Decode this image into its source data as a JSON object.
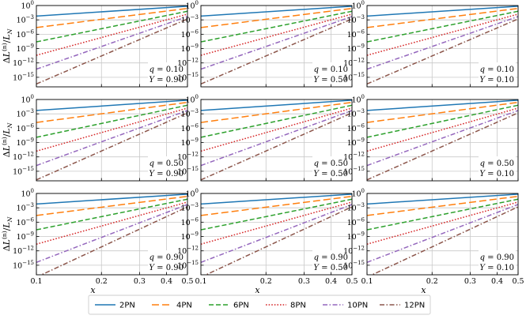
{
  "chart_data": {
    "type": "line",
    "layout": "3x3 grid of log-log line plots",
    "xlabel": "x",
    "ylabel": "ΔL(n)/LN",
    "xscale": "log",
    "yscale": "log",
    "xlim": [
      0.1,
      0.5
    ],
    "ylim": [
      1e-17,
      1
    ],
    "x_ticks": [
      {
        "value": 0.1,
        "label": "0.1"
      },
      {
        "value": 0.2,
        "label": "0.2"
      },
      {
        "value": 0.3,
        "label": "0.3"
      },
      {
        "value": 0.4,
        "label": "0.4"
      },
      {
        "value": 0.5,
        "label": "0.5"
      }
    ],
    "y_ticks": [
      {
        "value": 1,
        "label": "10^0",
        "exp": "0"
      },
      {
        "value": 0.001,
        "label": "10^-3",
        "exp": "−3"
      },
      {
        "value": 1e-06,
        "label": "10^-6",
        "exp": "−6"
      },
      {
        "value": 1e-09,
        "label": "10^-9",
        "exp": "−9"
      },
      {
        "value": 1e-12,
        "label": "10^-12",
        "exp": "−12"
      },
      {
        "value": 1e-15,
        "label": "10^-15",
        "exp": "−15"
      }
    ],
    "legend": {
      "position": "bottom-center",
      "entries": [
        "2PN",
        "4PN",
        "6PN",
        "8PN",
        "10PN",
        "12PN"
      ]
    },
    "series_styles": [
      {
        "name": "2PN",
        "color": "#1f77b4",
        "dash": "solid"
      },
      {
        "name": "4PN",
        "color": "#ff7f0e",
        "dash": "long-dash"
      },
      {
        "name": "6PN",
        "color": "#2ca02c",
        "dash": "dash"
      },
      {
        "name": "8PN",
        "color": "#d62728",
        "dash": "dot"
      },
      {
        "name": "10PN",
        "color": "#9467bd",
        "dash": "dash-dot"
      },
      {
        "name": "12PN",
        "color": "#8c564b",
        "dash": "dash-dot"
      }
    ],
    "panels": [
      {
        "row": 0,
        "col": 0,
        "q": "0.10",
        "Y": "0.90",
        "series": [
          {
            "name": "2PN",
            "log10_y_at_x0.1": -2.2,
            "log10_y_at_x0.5": -0.15
          },
          {
            "name": "4PN",
            "log10_y_at_x0.1": -4.6,
            "log10_y_at_x0.5": -0.6
          },
          {
            "name": "6PN",
            "log10_y_at_x0.1": -7.6,
            "log10_y_at_x0.5": -1.2
          },
          {
            "name": "8PN",
            "log10_y_at_x0.1": -10.4,
            "log10_y_at_x0.5": -1.8
          },
          {
            "name": "10PN",
            "log10_y_at_x0.1": -13.3,
            "log10_y_at_x0.5": -2.3
          },
          {
            "name": "12PN",
            "log10_y_at_x0.1": -16.4,
            "log10_y_at_x0.5": -2.8
          }
        ]
      },
      {
        "row": 0,
        "col": 1,
        "q": "0.10",
        "Y": "0.50",
        "series": [
          {
            "name": "2PN",
            "log10_y_at_x0.1": -2.2,
            "log10_y_at_x0.5": -0.15
          },
          {
            "name": "4PN",
            "log10_y_at_x0.1": -4.6,
            "log10_y_at_x0.5": -0.6
          },
          {
            "name": "6PN",
            "log10_y_at_x0.1": -7.6,
            "log10_y_at_x0.5": -1.2
          },
          {
            "name": "8PN",
            "log10_y_at_x0.1": -10.4,
            "log10_y_at_x0.5": -1.8
          },
          {
            "name": "10PN",
            "log10_y_at_x0.1": -13.3,
            "log10_y_at_x0.5": -2.3
          },
          {
            "name": "12PN",
            "log10_y_at_x0.1": -16.4,
            "log10_y_at_x0.5": -2.8
          }
        ]
      },
      {
        "row": 0,
        "col": 2,
        "q": "0.10",
        "Y": "0.10",
        "series": [
          {
            "name": "2PN",
            "log10_y_at_x0.1": -2.2,
            "log10_y_at_x0.5": -0.15
          },
          {
            "name": "4PN",
            "log10_y_at_x0.1": -4.6,
            "log10_y_at_x0.5": -0.6
          },
          {
            "name": "6PN",
            "log10_y_at_x0.1": -7.6,
            "log10_y_at_x0.5": -1.2
          },
          {
            "name": "8PN",
            "log10_y_at_x0.1": -10.4,
            "log10_y_at_x0.5": -1.8
          },
          {
            "name": "10PN",
            "log10_y_at_x0.1": -13.3,
            "log10_y_at_x0.5": -2.3
          },
          {
            "name": "12PN",
            "log10_y_at_x0.1": -16.4,
            "log10_y_at_x0.5": -2.8
          }
        ]
      },
      {
        "row": 1,
        "col": 0,
        "q": "0.50",
        "Y": "0.90",
        "series": [
          {
            "name": "2PN",
            "log10_y_at_x0.1": -2.3,
            "log10_y_at_x0.5": -0.15
          },
          {
            "name": "4PN",
            "log10_y_at_x0.1": -4.8,
            "log10_y_at_x0.5": -0.6
          },
          {
            "name": "6PN",
            "log10_y_at_x0.1": -7.9,
            "log10_y_at_x0.5": -1.2
          },
          {
            "name": "8PN",
            "log10_y_at_x0.1": -10.8,
            "log10_y_at_x0.5": -1.8
          },
          {
            "name": "10PN",
            "log10_y_at_x0.1": -13.8,
            "log10_y_at_x0.5": -2.3
          },
          {
            "name": "12PN",
            "log10_y_at_x0.1": -16.8,
            "log10_y_at_x0.5": -2.8
          }
        ]
      },
      {
        "row": 1,
        "col": 1,
        "q": "0.50",
        "Y": "0.50",
        "series": [
          {
            "name": "2PN",
            "log10_y_at_x0.1": -2.3,
            "log10_y_at_x0.5": -0.15
          },
          {
            "name": "4PN",
            "log10_y_at_x0.1": -4.8,
            "log10_y_at_x0.5": -0.6
          },
          {
            "name": "6PN",
            "log10_y_at_x0.1": -7.9,
            "log10_y_at_x0.5": -1.2
          },
          {
            "name": "8PN",
            "log10_y_at_x0.1": -10.8,
            "log10_y_at_x0.5": -1.8
          },
          {
            "name": "10PN",
            "log10_y_at_x0.1": -13.8,
            "log10_y_at_x0.5": -2.3
          },
          {
            "name": "12PN",
            "log10_y_at_x0.1": -16.8,
            "log10_y_at_x0.5": -2.8
          }
        ]
      },
      {
        "row": 1,
        "col": 2,
        "q": "0.50",
        "Y": "0.10",
        "series": [
          {
            "name": "2PN",
            "log10_y_at_x0.1": -2.3,
            "log10_y_at_x0.5": -0.15
          },
          {
            "name": "4PN",
            "log10_y_at_x0.1": -4.8,
            "log10_y_at_x0.5": -0.6
          },
          {
            "name": "6PN",
            "log10_y_at_x0.1": -7.9,
            "log10_y_at_x0.5": -1.2
          },
          {
            "name": "8PN",
            "log10_y_at_x0.1": -10.8,
            "log10_y_at_x0.5": -1.8
          },
          {
            "name": "10PN",
            "log10_y_at_x0.1": -13.8,
            "log10_y_at_x0.5": -2.3
          },
          {
            "name": "12PN",
            "log10_y_at_x0.1": -16.8,
            "log10_y_at_x0.5": -2.8
          }
        ]
      },
      {
        "row": 2,
        "col": 0,
        "q": "0.90",
        "Y": "0.90",
        "series": [
          {
            "name": "2PN",
            "log10_y_at_x0.1": -2.2,
            "log10_y_at_x0.5": -0.15
          },
          {
            "name": "4PN",
            "log10_y_at_x0.1": -4.6,
            "log10_y_at_x0.5": -0.6
          },
          {
            "name": "6PN",
            "log10_y_at_x0.1": -7.6,
            "log10_y_at_x0.5": -1.2
          },
          {
            "name": "8PN",
            "log10_y_at_x0.1": -10.6,
            "log10_y_at_x0.5": -1.8
          },
          {
            "name": "10PN",
            "log10_y_at_x0.1": -14.4,
            "log10_y_at_x0.5": -2.3
          },
          {
            "name": "12PN",
            "log10_y_at_x0.1": -17.5,
            "log10_y_at_x0.5": -2.8
          }
        ]
      },
      {
        "row": 2,
        "col": 1,
        "q": "0.90",
        "Y": "0.50",
        "series": [
          {
            "name": "2PN",
            "log10_y_at_x0.1": -2.2,
            "log10_y_at_x0.5": -0.15
          },
          {
            "name": "4PN",
            "log10_y_at_x0.1": -4.6,
            "log10_y_at_x0.5": -0.6
          },
          {
            "name": "6PN",
            "log10_y_at_x0.1": -7.6,
            "log10_y_at_x0.5": -1.2
          },
          {
            "name": "8PN",
            "log10_y_at_x0.1": -10.6,
            "log10_y_at_x0.5": -1.8
          },
          {
            "name": "10PN",
            "log10_y_at_x0.1": -14.4,
            "log10_y_at_x0.5": -2.3
          },
          {
            "name": "12PN",
            "log10_y_at_x0.1": -17.5,
            "log10_y_at_x0.5": -2.8
          }
        ]
      },
      {
        "row": 2,
        "col": 2,
        "q": "0.90",
        "Y": "0.10",
        "series": [
          {
            "name": "2PN",
            "log10_y_at_x0.1": -2.2,
            "log10_y_at_x0.5": -0.15
          },
          {
            "name": "4PN",
            "log10_y_at_x0.1": -4.6,
            "log10_y_at_x0.5": -0.6
          },
          {
            "name": "6PN",
            "log10_y_at_x0.1": -7.6,
            "log10_y_at_x0.5": -1.2
          },
          {
            "name": "8PN",
            "log10_y_at_x0.1": -10.6,
            "log10_y_at_x0.5": -1.8
          },
          {
            "name": "10PN",
            "log10_y_at_x0.1": -14.4,
            "log10_y_at_x0.5": -2.3
          },
          {
            "name": "12PN",
            "log10_y_at_x0.1": -17.5,
            "log10_y_at_x0.5": -2.8
          }
        ]
      }
    ]
  }
}
